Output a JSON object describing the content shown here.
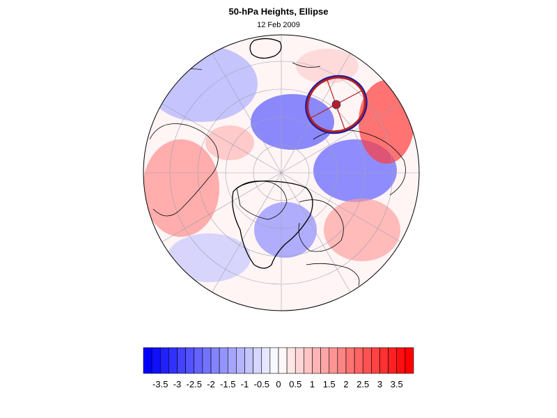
{
  "header": {
    "title": "50-hPa Heights, Ellipse",
    "subtitle": "12 Feb 2009"
  },
  "colorbar": {
    "labels": [
      "-3.5",
      "-3",
      "-2.5",
      "-2",
      "-1.5",
      "-1",
      "-0.5",
      "0",
      "0.5",
      "1",
      "1.5",
      "2",
      "2.5",
      "3",
      "3.5"
    ],
    "min": -4,
    "max": 4,
    "step": 0.25,
    "negative_color": "#0000ff",
    "positive_color": "#ff0000",
    "neutral_color": "#ffffff"
  },
  "map": {
    "projection": "polar-stereographic-north",
    "ocean_color": "#ffffff",
    "coast_color": "#000000",
    "contour_color": "#000000",
    "ellipse_outer_color": "#b22222",
    "ellipse_inner_color": "#1a1aa0"
  }
}
